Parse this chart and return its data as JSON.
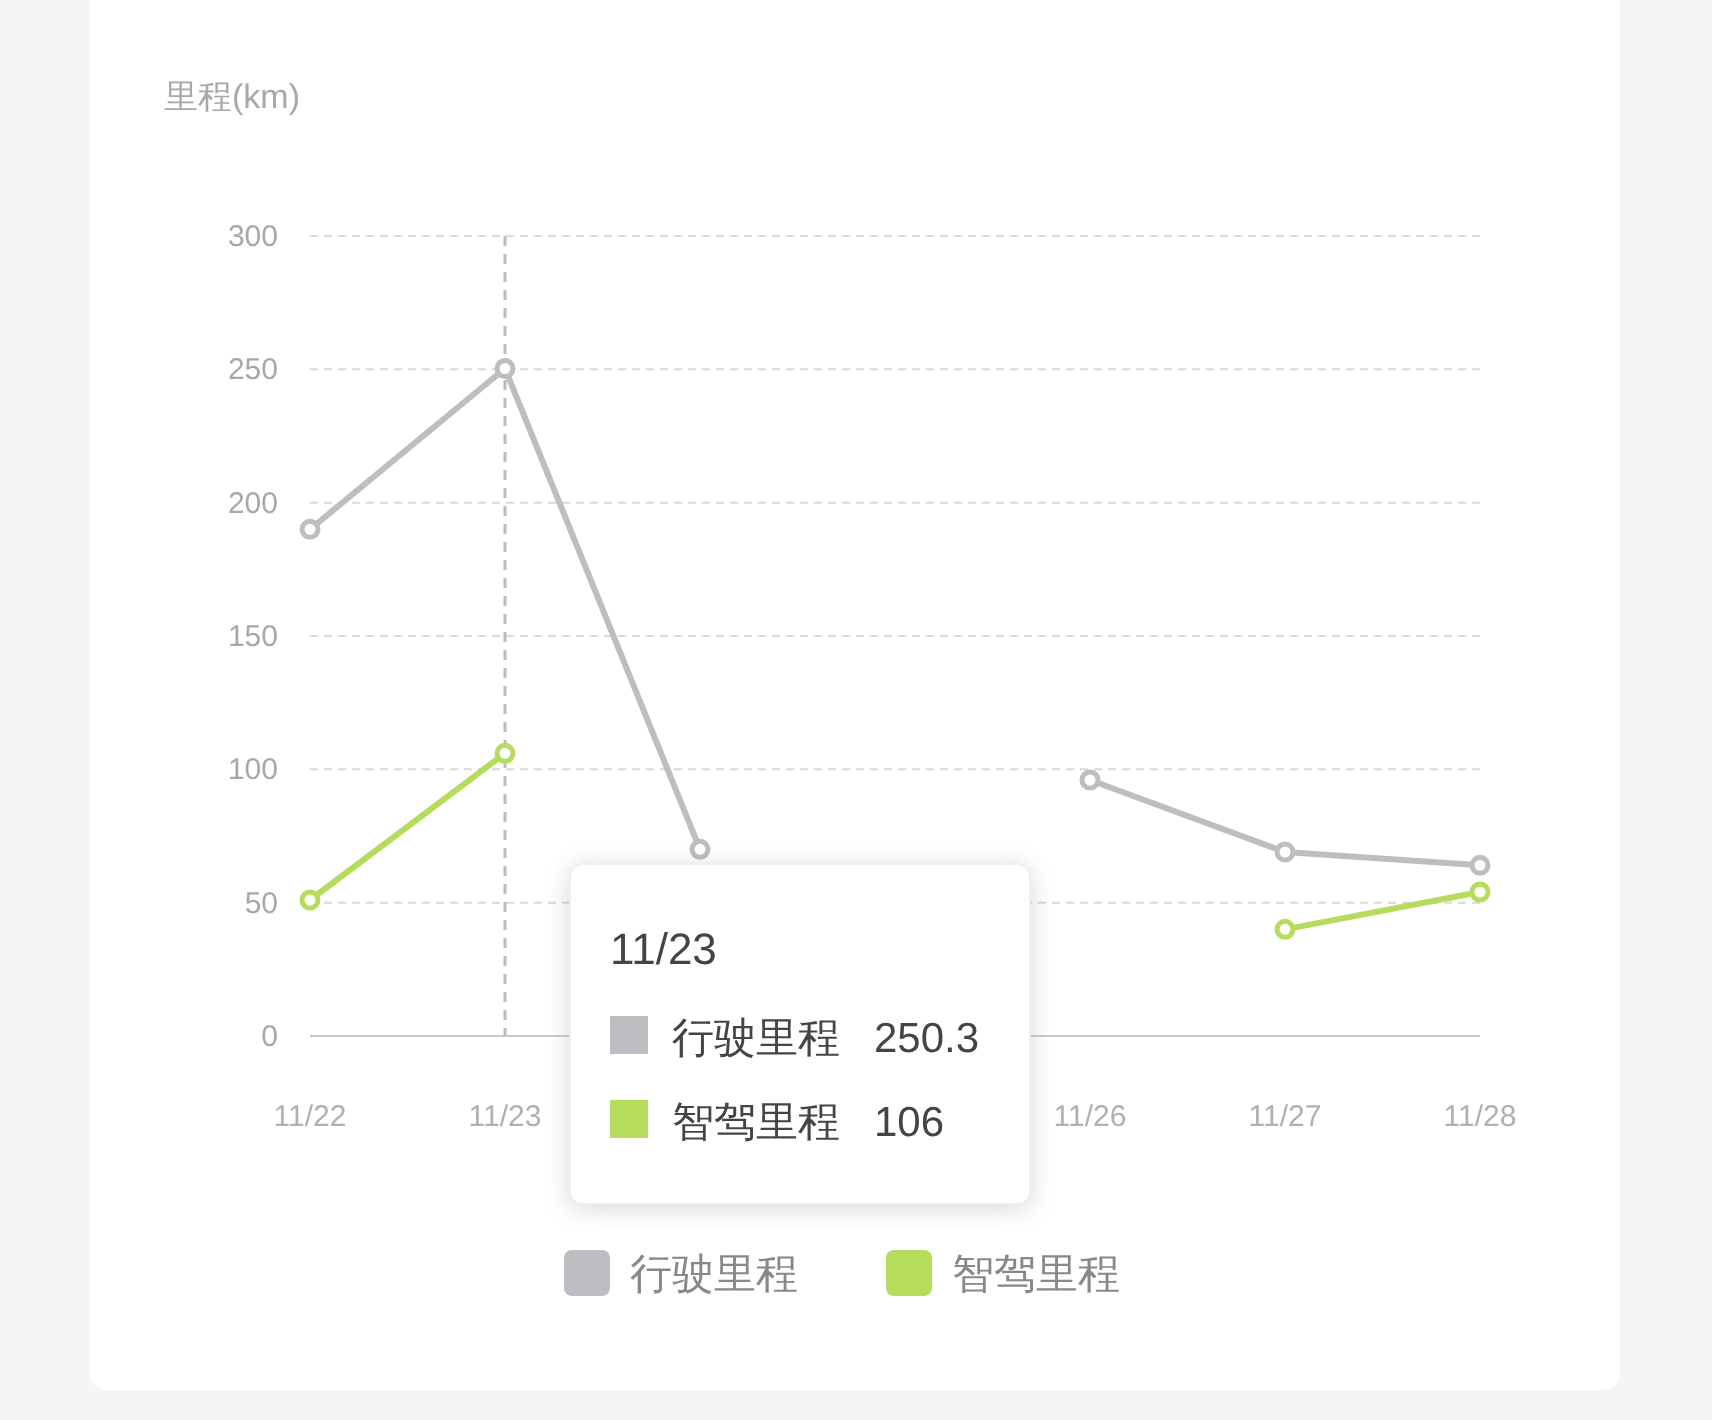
{
  "chart_data": {
    "type": "line",
    "ylabel": "里程(km)",
    "categories": [
      "11/22",
      "11/23",
      null,
      null,
      "11/26",
      "11/27",
      "11/28"
    ],
    "series": [
      {
        "name": "行驶里程",
        "color": "#bdbec2",
        "values": [
          190,
          250.3,
          70,
          null,
          96,
          69,
          64
        ]
      },
      {
        "name": "智驾里程",
        "color": "#b5dc5c",
        "values": [
          51,
          106,
          null,
          null,
          null,
          40,
          54
        ]
      }
    ],
    "ylim": [
      0,
      300
    ],
    "yticks": [
      0,
      50,
      100,
      150,
      200,
      250,
      300
    ],
    "grid": "y",
    "legend": "bottom",
    "marker": "circle",
    "ref_lines": [
      {
        "axis": "x",
        "value": "11/23",
        "line_style": "dashed",
        "color": "#bbbbbb"
      }
    ],
    "annotations": [
      "11/23",
      "行驶里程",
      "250.3",
      "智驾里程",
      "106"
    ]
  }
}
